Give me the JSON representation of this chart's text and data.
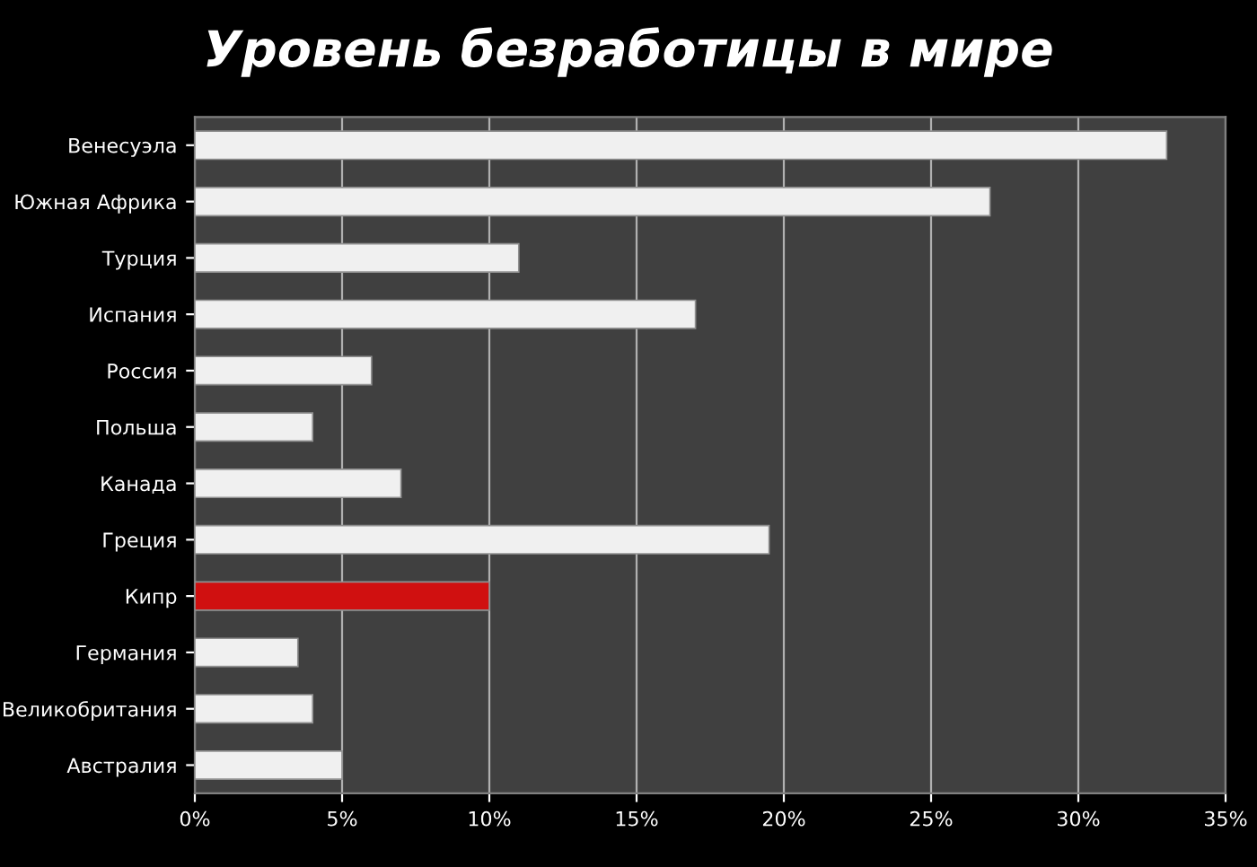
{
  "chart_data": {
    "type": "bar",
    "orientation": "horizontal",
    "title": "Уровень безработицы в мире",
    "categories": [
      "Венесуэла",
      "Южная Африка",
      "Турция",
      "Испания",
      "Россия",
      "Польша",
      "Канада",
      "Греция",
      "Кипр",
      "Германия",
      "Великобритания",
      "Австралия"
    ],
    "values": [
      33,
      27,
      11,
      17,
      6,
      4,
      7,
      19.5,
      10,
      3.5,
      4,
      5
    ],
    "colors": [
      "#f0f0f0",
      "#f0f0f0",
      "#f0f0f0",
      "#f0f0f0",
      "#f0f0f0",
      "#f0f0f0",
      "#f0f0f0",
      "#f0f0f0",
      "#d01010",
      "#f0f0f0",
      "#f0f0f0",
      "#f0f0f0"
    ],
    "xlim": [
      0,
      35
    ],
    "xticks": [
      {
        "value": 0,
        "label": "0%"
      },
      {
        "value": 5,
        "label": "5%"
      },
      {
        "value": 10,
        "label": "10%"
      },
      {
        "value": 15,
        "label": "15%"
      },
      {
        "value": 20,
        "label": "20%"
      },
      {
        "value": 25,
        "label": "25%"
      },
      {
        "value": 30,
        "label": "30%"
      },
      {
        "value": 35,
        "label": "35%"
      }
    ],
    "grid": "x",
    "legend": false
  }
}
